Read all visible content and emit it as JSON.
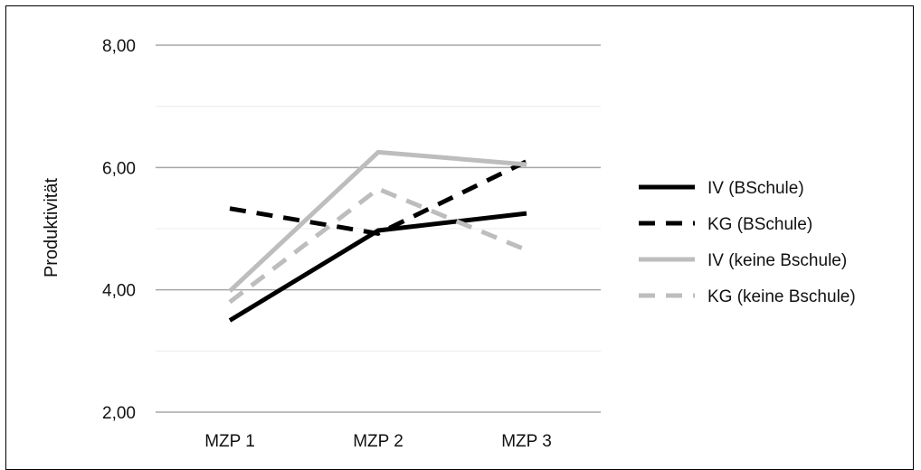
{
  "chart_data": {
    "type": "line",
    "title": "",
    "xlabel": "",
    "ylabel": "Produktivität",
    "categories": [
      "MZP 1",
      "MZP 2",
      "MZP 3"
    ],
    "ylim": [
      2.0,
      8.0
    ],
    "yticks": [
      "2,00",
      "4,00",
      "6,00",
      "8,00"
    ],
    "ytick_values": [
      2.0,
      4.0,
      6.0,
      8.0
    ],
    "minor_gridlines": [
      3.0,
      5.0,
      7.0
    ],
    "grid": true,
    "legend_position": "right",
    "series": [
      {
        "name": "IV (BSchule)",
        "values": [
          3.5,
          4.97,
          5.25
        ],
        "color": "#000000",
        "dash": "solid"
      },
      {
        "name": "KG (BSchule)",
        "values": [
          5.33,
          4.92,
          6.1
        ],
        "color": "#000000",
        "dash": "dashed"
      },
      {
        "name": "IV (keine Bschule)",
        "values": [
          3.98,
          6.25,
          6.05
        ],
        "color": "#bdbdbd",
        "dash": "solid"
      },
      {
        "name": "KG (keine Bschule)",
        "values": [
          3.8,
          5.65,
          4.65
        ],
        "color": "#bdbdbd",
        "dash": "dashed"
      }
    ]
  }
}
